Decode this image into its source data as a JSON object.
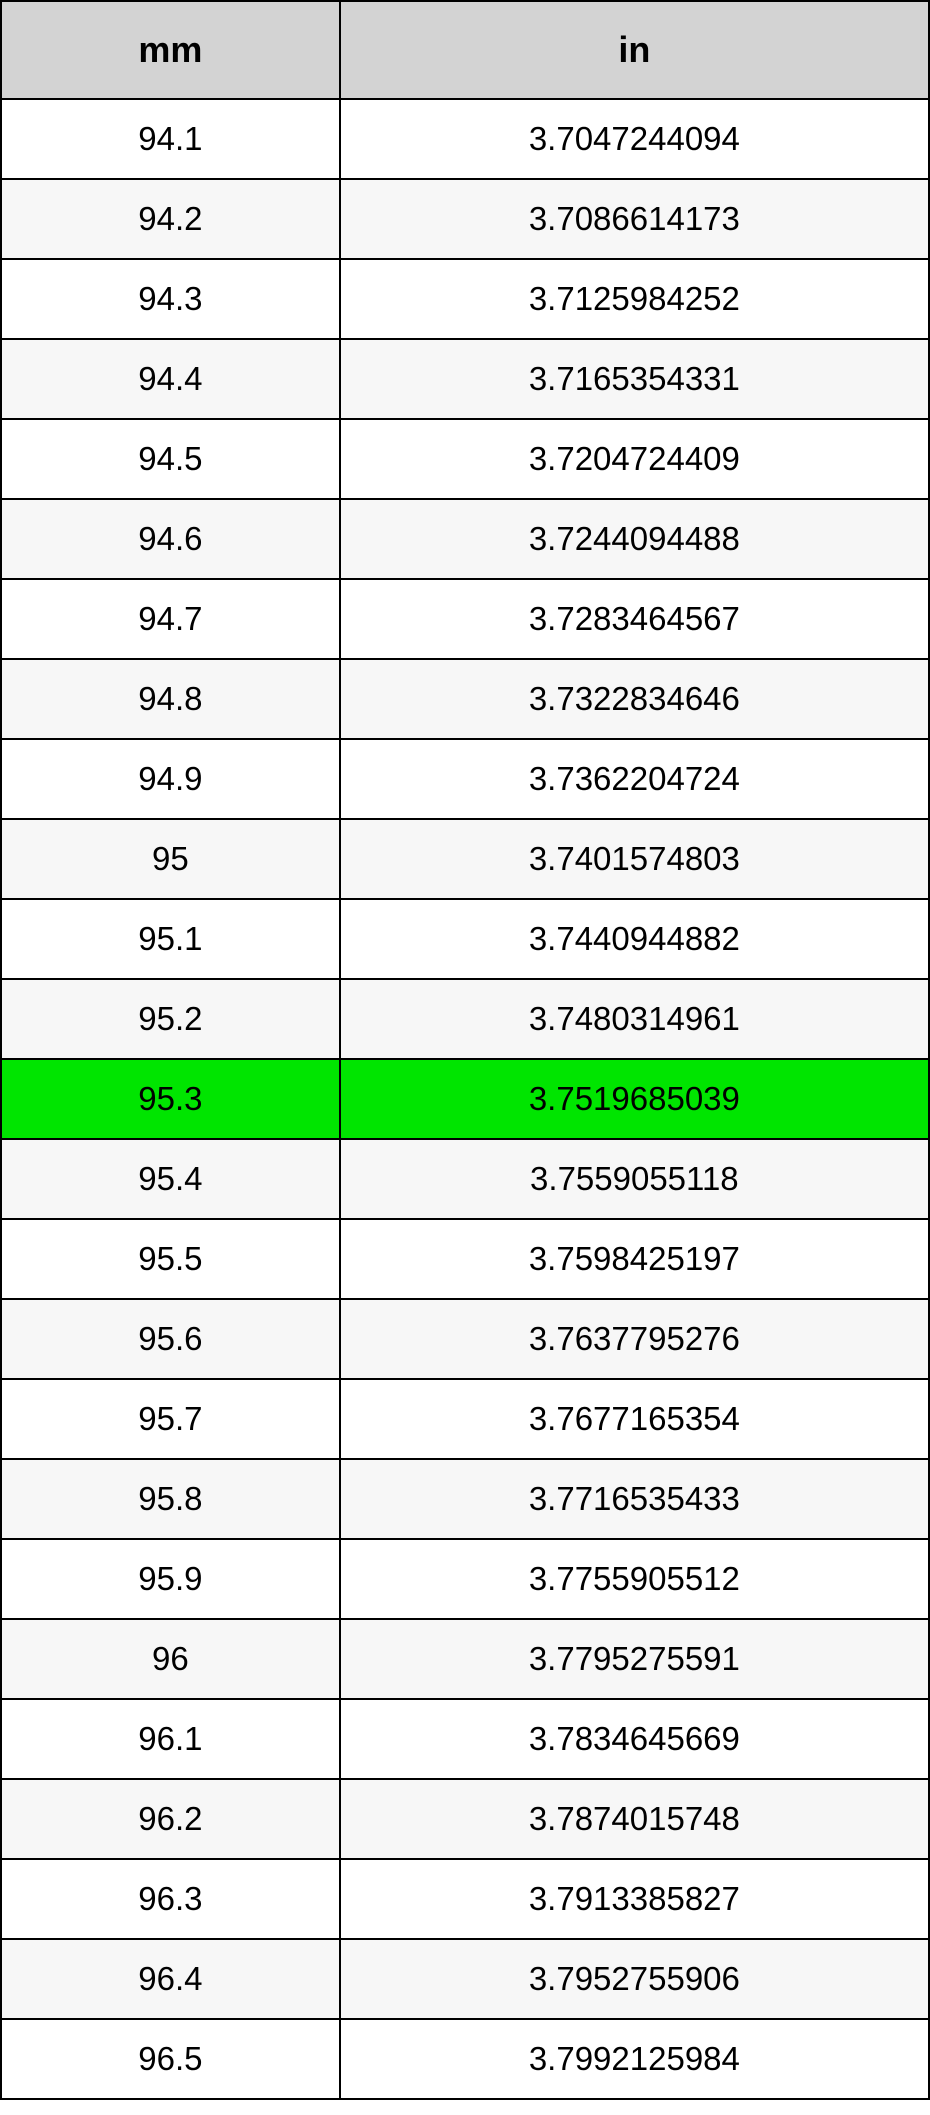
{
  "table": {
    "type": "table",
    "columns": [
      {
        "key": "mm",
        "label": "mm",
        "width_pct": 36.5
      },
      {
        "key": "in",
        "label": "in",
        "width_pct": 63.5
      }
    ],
    "header_bg": "#d3d3d3",
    "header_fontsize": 36,
    "header_fontweight": "bold",
    "cell_fontsize": 33,
    "border_color": "#000000",
    "border_width": 2,
    "row_bg_odd": "#ffffff",
    "row_bg_even": "#f7f7f7",
    "highlight_bg": "#00e500",
    "text_color": "#000000",
    "rows": [
      {
        "mm": "94.1",
        "in": "3.7047244094",
        "highlight": false
      },
      {
        "mm": "94.2",
        "in": "3.7086614173",
        "highlight": false
      },
      {
        "mm": "94.3",
        "in": "3.7125984252",
        "highlight": false
      },
      {
        "mm": "94.4",
        "in": "3.7165354331",
        "highlight": false
      },
      {
        "mm": "94.5",
        "in": "3.7204724409",
        "highlight": false
      },
      {
        "mm": "94.6",
        "in": "3.7244094488",
        "highlight": false
      },
      {
        "mm": "94.7",
        "in": "3.7283464567",
        "highlight": false
      },
      {
        "mm": "94.8",
        "in": "3.7322834646",
        "highlight": false
      },
      {
        "mm": "94.9",
        "in": "3.7362204724",
        "highlight": false
      },
      {
        "mm": "95",
        "in": "3.7401574803",
        "highlight": false
      },
      {
        "mm": "95.1",
        "in": "3.7440944882",
        "highlight": false
      },
      {
        "mm": "95.2",
        "in": "3.7480314961",
        "highlight": false
      },
      {
        "mm": "95.3",
        "in": "3.7519685039",
        "highlight": true
      },
      {
        "mm": "95.4",
        "in": "3.7559055118",
        "highlight": false
      },
      {
        "mm": "95.5",
        "in": "3.7598425197",
        "highlight": false
      },
      {
        "mm": "95.6",
        "in": "3.7637795276",
        "highlight": false
      },
      {
        "mm": "95.7",
        "in": "3.7677165354",
        "highlight": false
      },
      {
        "mm": "95.8",
        "in": "3.7716535433",
        "highlight": false
      },
      {
        "mm": "95.9",
        "in": "3.7755905512",
        "highlight": false
      },
      {
        "mm": "96",
        "in": "3.7795275591",
        "highlight": false
      },
      {
        "mm": "96.1",
        "in": "3.7834645669",
        "highlight": false
      },
      {
        "mm": "96.2",
        "in": "3.7874015748",
        "highlight": false
      },
      {
        "mm": "96.3",
        "in": "3.7913385827",
        "highlight": false
      },
      {
        "mm": "96.4",
        "in": "3.7952755906",
        "highlight": false
      },
      {
        "mm": "96.5",
        "in": "3.7992125984",
        "highlight": false
      }
    ]
  }
}
